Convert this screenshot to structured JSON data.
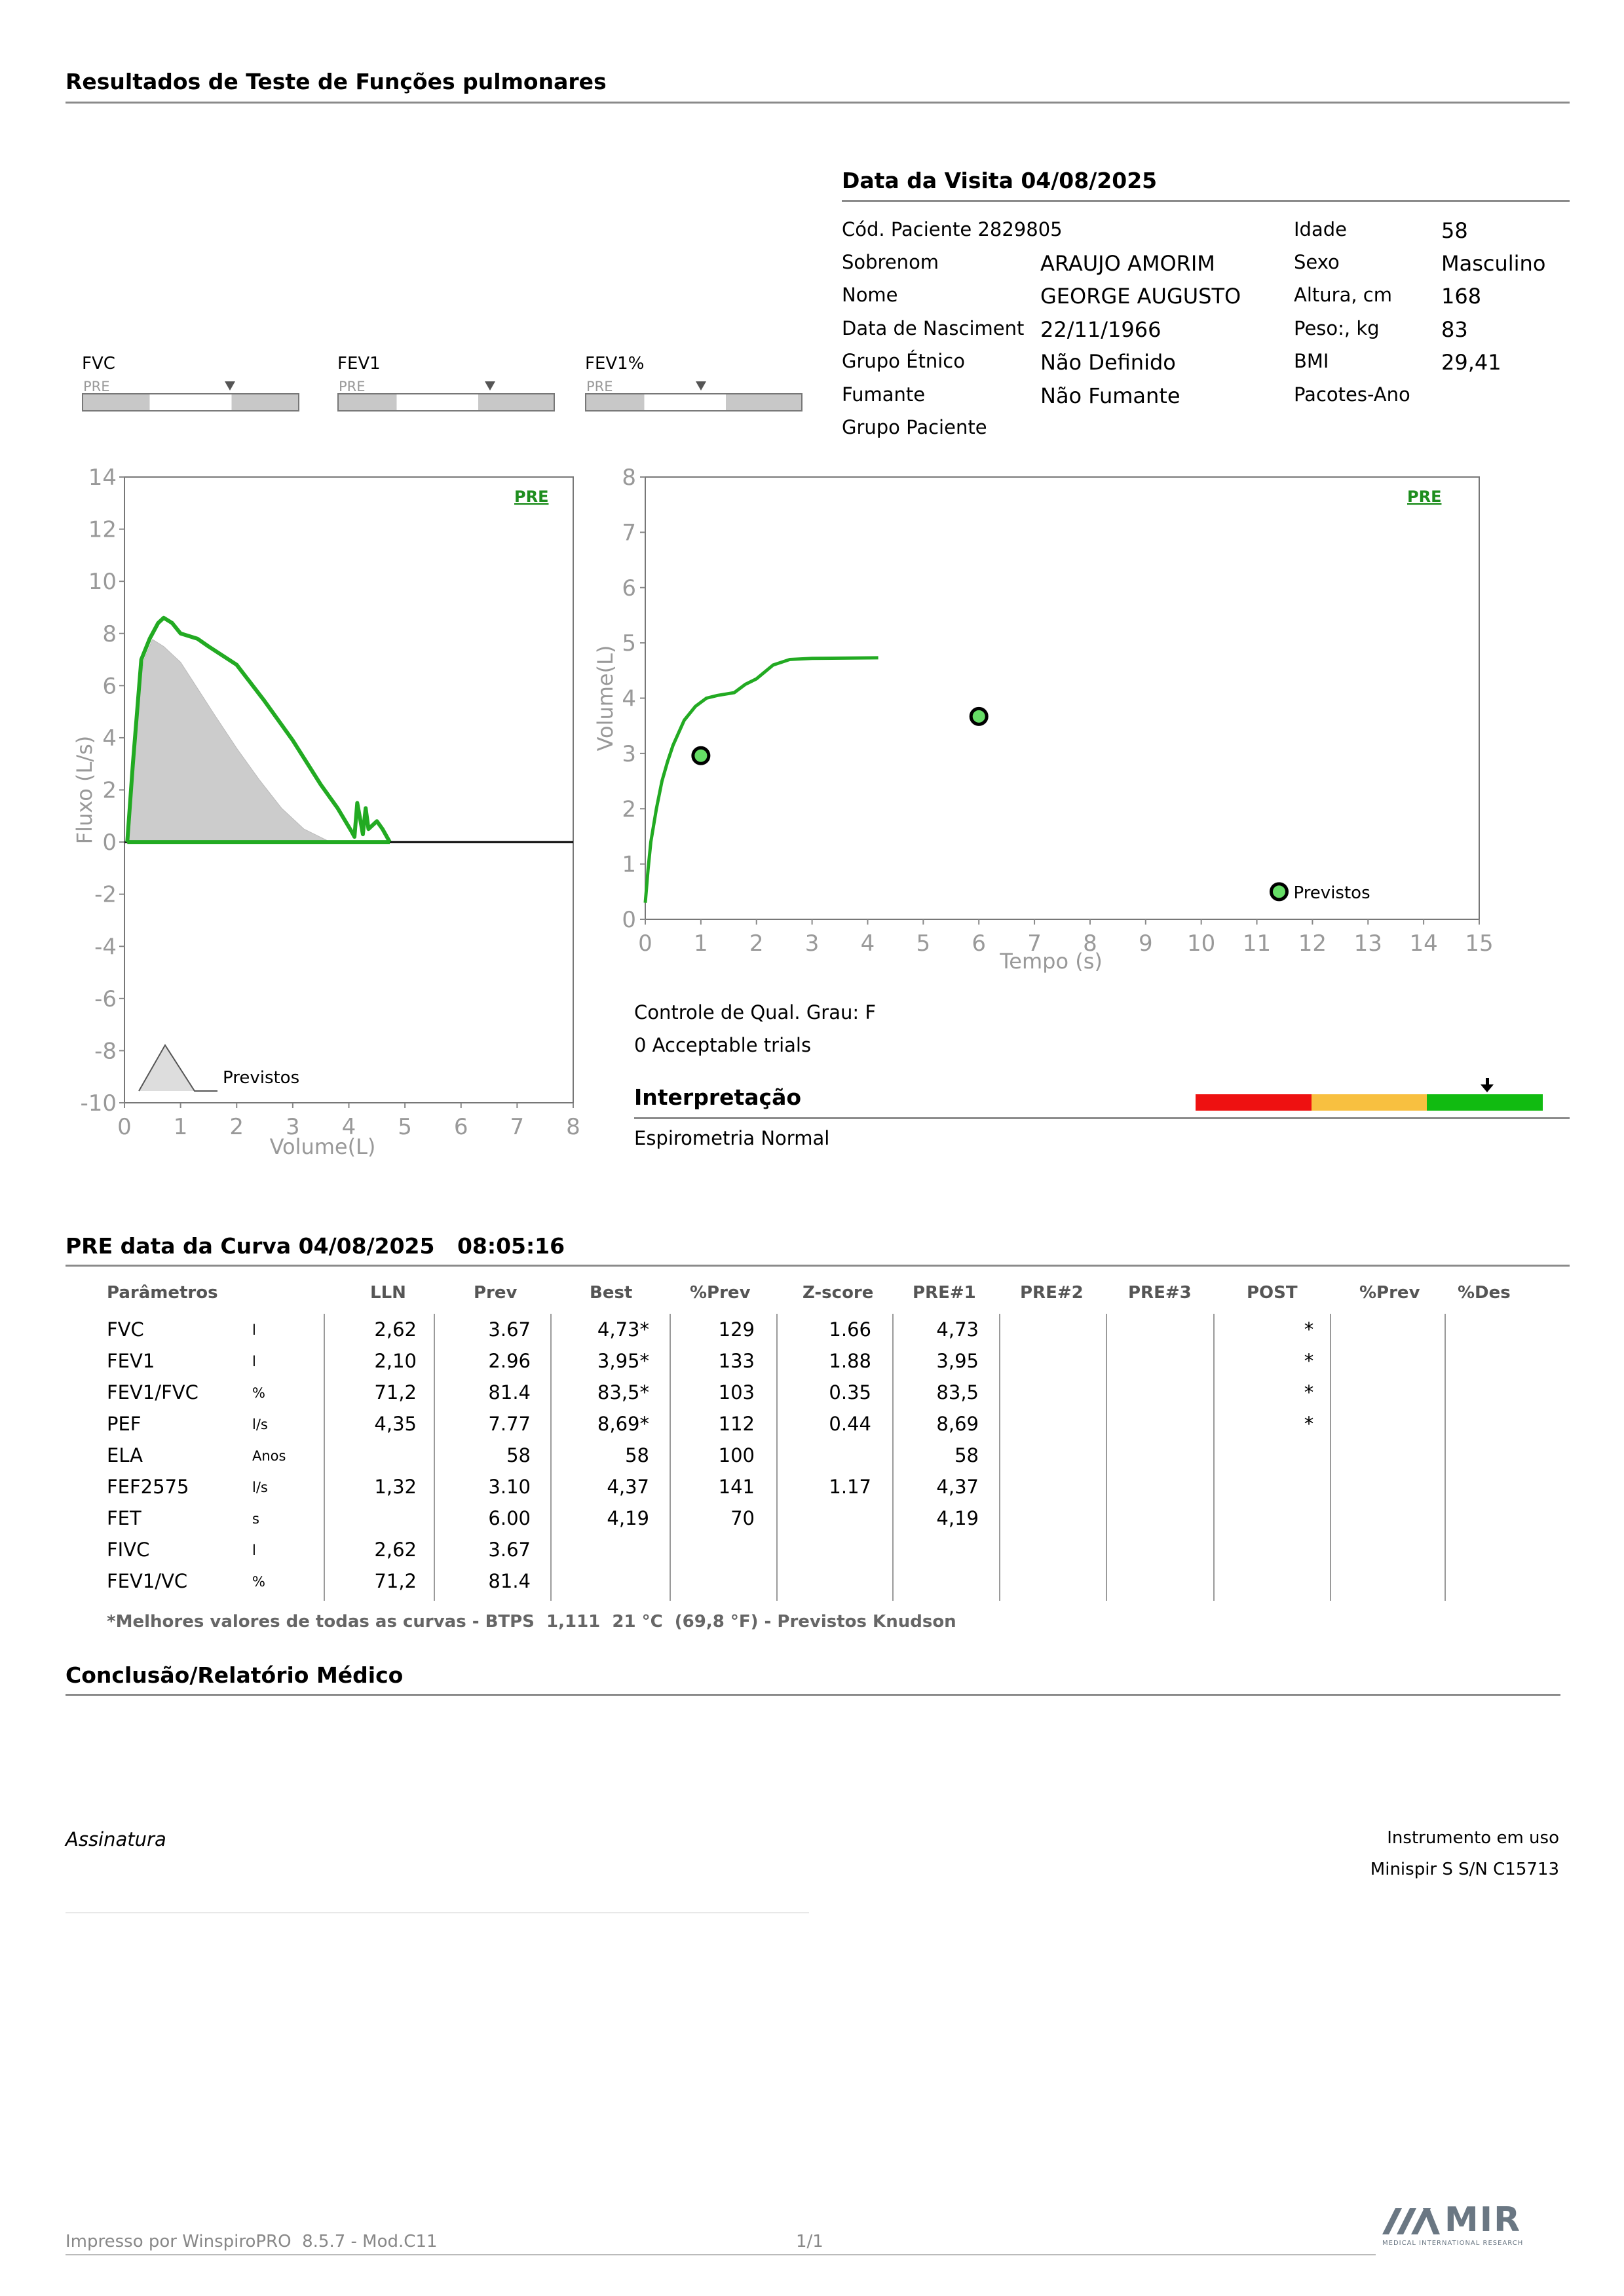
{
  "report_title": "Resultados de Teste de Funções pulmonares",
  "visit": {
    "title": "Data da Visita 04/08/2025",
    "patient_code": "Cód. Paciente 2829805",
    "labels": {
      "surname": "Sobrenom",
      "name": "Nome",
      "birth": "Data de Nasciment",
      "ethnic": "Grupo Étnico",
      "smoker": "Fumante",
      "group": "Grupo Paciente",
      "age": "Idade",
      "sex": "Sexo",
      "height": "Altura, cm",
      "weight": "Peso:, kg",
      "bmi": "BMI",
      "packs": "Pacotes-Ano"
    },
    "values": {
      "surname": "ARAUJO AMORIM",
      "name": "GEORGE AUGUSTO",
      "birth": "22/11/1966",
      "ethnic": "Não Definido",
      "smoker": "Não Fumante",
      "age": "58",
      "sex": "Masculino",
      "height": "168",
      "weight": "83",
      "bmi": "29,41"
    }
  },
  "mini_bars": [
    {
      "label": "FVC",
      "tag": "PRE",
      "marker_fraction": 0.69
    },
    {
      "label": "FEV1",
      "tag": "PRE",
      "marker_fraction": 0.71
    },
    {
      "label": "FEV1%",
      "tag": "PRE",
      "marker_fraction": 0.54
    }
  ],
  "chart_data": [
    {
      "type": "area",
      "tag": "PRE",
      "xlabel": "Volume(L)",
      "ylabel": "Fluxo (L/s)",
      "xlim": [
        0,
        8
      ],
      "ylim": [
        -10,
        14
      ],
      "x_ticks": [
        "0",
        "1",
        "2",
        "3",
        "4",
        "5",
        "6",
        "7",
        "8"
      ],
      "y_ticks": [
        "14",
        "12",
        "10",
        "8",
        "6",
        "4",
        "2",
        "0",
        "-2",
        "-4",
        "-6",
        "-8",
        "-10"
      ],
      "legend": "Previstos",
      "series": [
        {
          "kind": "predicted",
          "color": "#cccccc",
          "x": [
            0.05,
            0.2,
            0.35,
            0.5,
            0.7,
            1.0,
            1.3,
            1.6,
            2.0,
            2.4,
            2.8,
            3.2,
            3.67
          ],
          "y": [
            0,
            5.0,
            7.0,
            7.77,
            7.5,
            6.9,
            5.9,
            4.9,
            3.6,
            2.4,
            1.3,
            0.5,
            0
          ]
        },
        {
          "kind": "measured",
          "color": "#22aa22",
          "x": [
            0.05,
            0.15,
            0.3,
            0.45,
            0.6,
            0.7,
            0.85,
            1.0,
            1.3,
            1.5,
            2.0,
            2.5,
            3.0,
            3.5,
            3.8,
            4.05,
            4.1,
            4.15,
            4.25,
            4.3,
            4.35,
            4.5,
            4.6,
            4.73
          ],
          "y": [
            0,
            3.0,
            7.0,
            7.8,
            8.4,
            8.6,
            8.4,
            8.0,
            7.8,
            7.5,
            6.8,
            5.4,
            3.9,
            2.2,
            1.3,
            0.4,
            0.2,
            1.5,
            0.3,
            1.3,
            0.5,
            0.8,
            0.5,
            0
          ]
        }
      ]
    },
    {
      "type": "line",
      "tag": "PRE",
      "xlabel": "Tempo (s)",
      "ylabel": "Volume(L)",
      "xlim": [
        0,
        15
      ],
      "ylim": [
        0,
        8
      ],
      "x_ticks": [
        "0",
        "1",
        "2",
        "3",
        "4",
        "5",
        "6",
        "7",
        "8",
        "9",
        "10",
        "11",
        "12",
        "13",
        "14",
        "15"
      ],
      "y_ticks": [
        "8",
        "7",
        "6",
        "5",
        "4",
        "3",
        "2",
        "1",
        "0"
      ],
      "legend": "Previstos",
      "series": [
        {
          "kind": "measured",
          "color": "#22aa22",
          "x": [
            0,
            0.05,
            0.1,
            0.2,
            0.3,
            0.4,
            0.5,
            0.7,
            0.9,
            1.1,
            1.3,
            1.6,
            1.8,
            2.0,
            2.3,
            2.6,
            3.0,
            4.19
          ],
          "y": [
            0.3,
            0.9,
            1.4,
            2.0,
            2.5,
            2.85,
            3.15,
            3.6,
            3.85,
            4.0,
            4.05,
            4.1,
            4.25,
            4.35,
            4.6,
            4.7,
            4.72,
            4.73
          ]
        },
        {
          "kind": "predicted_points",
          "color": "#66dd66",
          "x": [
            1.0,
            6.0
          ],
          "y": [
            2.96,
            3.67
          ]
        }
      ]
    }
  ],
  "quality": {
    "grade": "Controle de Qual. Grau: F",
    "trials": "0 Acceptable trials"
  },
  "interpretation": {
    "title": "Interpretação",
    "text": "Espirometria Normal",
    "scale_colors": [
      "#ee1111",
      "#f8c040",
      "#11bb11"
    ],
    "marker_fraction": 0.84
  },
  "curve": {
    "title": "PRE data da Curva 04/08/2025   08:05:16",
    "headers": [
      "Parâmetros",
      "LLN",
      "Prev",
      "Best",
      "%Prev",
      "Z-score",
      "PRE#1",
      "PRE#2",
      "PRE#3",
      "POST",
      "%Prev",
      "%Des"
    ],
    "rows": [
      {
        "param": "FVC",
        "unit": "l",
        "lln": "2,62",
        "prev": "3.67",
        "best": "4,73*",
        "pprev": "129",
        "z": "1.66",
        "pre1": "4,73",
        "post": "*"
      },
      {
        "param": "FEV1",
        "unit": "l",
        "lln": "2,10",
        "prev": "2.96",
        "best": "3,95*",
        "pprev": "133",
        "z": "1.88",
        "pre1": "3,95",
        "post": "*"
      },
      {
        "param": "FEV1/FVC",
        "unit": "%",
        "lln": "71,2",
        "prev": "81.4",
        "best": "83,5*",
        "pprev": "103",
        "z": "0.35",
        "pre1": "83,5",
        "post": "*"
      },
      {
        "param": "PEF",
        "unit": "l/s",
        "lln": "4,35",
        "prev": "7.77",
        "best": "8,69*",
        "pprev": "112",
        "z": "0.44",
        "pre1": "8,69",
        "post": "*"
      },
      {
        "param": "ELA",
        "unit": "Anos",
        "lln": "",
        "prev": "58",
        "best": "58",
        "pprev": "100",
        "z": "",
        "pre1": "58",
        "post": ""
      },
      {
        "param": "FEF2575",
        "unit": "l/s",
        "lln": "1,32",
        "prev": "3.10",
        "best": "4,37",
        "pprev": "141",
        "z": "1.17",
        "pre1": "4,37",
        "post": ""
      },
      {
        "param": "FET",
        "unit": "s",
        "lln": "",
        "prev": "6.00",
        "best": "4,19",
        "pprev": "70",
        "z": "",
        "pre1": "4,19",
        "post": ""
      },
      {
        "param": "FIVC",
        "unit": "l",
        "lln": "2,62",
        "prev": "3.67",
        "best": "",
        "pprev": "",
        "z": "",
        "pre1": "",
        "post": ""
      },
      {
        "param": "FEV1/VC",
        "unit": "%",
        "lln": "71,2",
        "prev": "81.4",
        "best": "",
        "pprev": "",
        "z": "",
        "pre1": "",
        "post": ""
      }
    ],
    "footnote": "*Melhores valores de todas as curvas - BTPS  1,111  21 °C  (69,8 °F) - Previstos Knudson"
  },
  "conclusion": {
    "title": "Conclusão/Relatório Médico"
  },
  "signature_label": "Assinatura",
  "instrument": {
    "label": "Instrumento em uso",
    "value": "Minispir S S/N C15713"
  },
  "footer": {
    "printed_by": "Impresso por WinspiroPRO  8.5.7 - Mod.C11",
    "page": "1/1",
    "logo": "MIR",
    "logo_sub": "MEDICAL INTERNATIONAL RESEARCH"
  }
}
